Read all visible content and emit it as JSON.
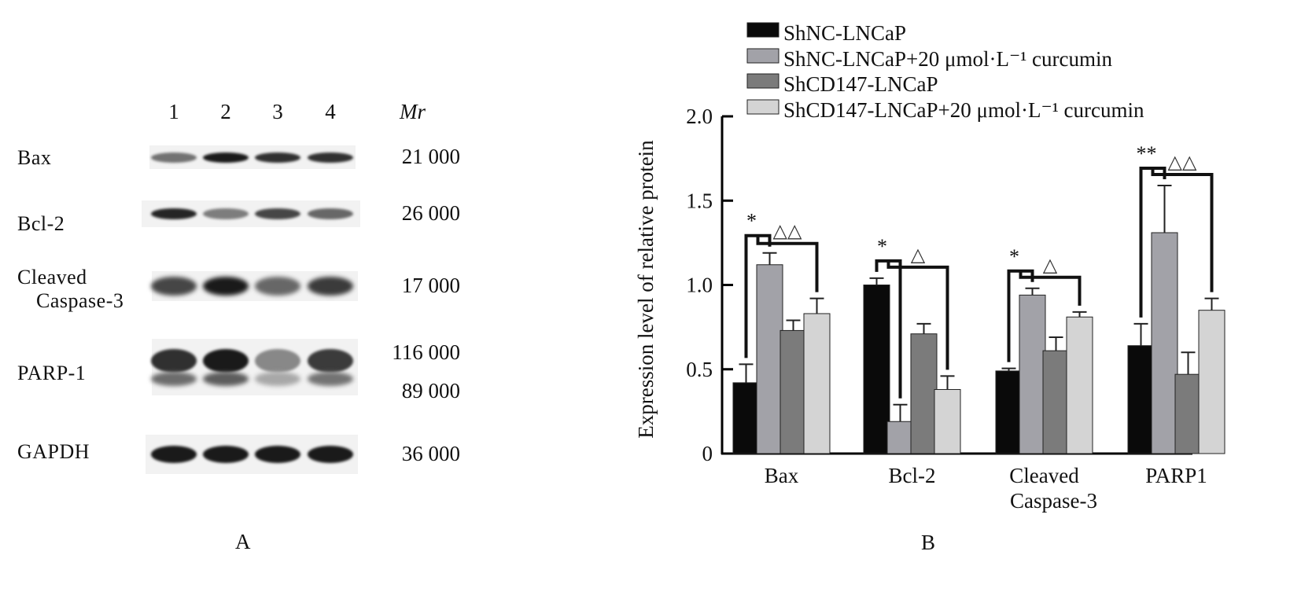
{
  "panel_a": {
    "label": "A",
    "lane_labels": [
      "1",
      "2",
      "3",
      "4"
    ],
    "mr_header": "Mr",
    "rows": [
      {
        "name_lines": [
          "Bax"
        ],
        "mw": [
          "21 000"
        ],
        "intensity": [
          0.55,
          0.95,
          0.85,
          0.85
        ]
      },
      {
        "name_lines": [
          "Bcl-2"
        ],
        "mw": [
          "26 000"
        ],
        "intensity": [
          0.9,
          0.5,
          0.75,
          0.6
        ]
      },
      {
        "name_lines": [
          "Cleaved",
          "Caspase-3"
        ],
        "mw": [
          "17 000"
        ],
        "intensity": [
          0.75,
          0.95,
          0.6,
          0.8
        ]
      },
      {
        "name_lines": [
          "PARP-1"
        ],
        "mw": [
          "116 000",
          "89 000"
        ],
        "intensity": [
          0.85,
          0.95,
          0.45,
          0.8
        ]
      },
      {
        "name_lines": [
          "GAPDH"
        ],
        "mw": [
          "36 000"
        ],
        "intensity": [
          0.95,
          0.95,
          0.95,
          0.95
        ]
      }
    ]
  },
  "chart_data": {
    "type": "bar",
    "panel_label": "B",
    "ylabel": "Expression level of relative protein",
    "ylim": [
      0,
      2.0
    ],
    "yticks": [
      "0",
      "0.5",
      "1.0",
      "1.5",
      "2.0"
    ],
    "ytick_values": [
      0,
      0.5,
      1.0,
      1.5,
      2.0
    ],
    "categories": [
      [
        "Bax"
      ],
      [
        "Bcl-2"
      ],
      [
        "Cleaved",
        "Caspase-3"
      ],
      [
        "PARP1"
      ]
    ],
    "series": [
      {
        "name": "ShNC-LNCaP",
        "color": "#0a0a0a",
        "values": [
          0.42,
          1.0,
          0.49,
          0.64
        ],
        "errors": [
          0.11,
          0.04,
          0.015,
          0.13
        ]
      },
      {
        "name": "ShNC-LNCaP+20 μmol·L⁻¹ curcumin",
        "color": "#a2a2a8",
        "values": [
          1.12,
          0.19,
          0.94,
          1.31
        ],
        "errors": [
          0.07,
          0.1,
          0.04,
          0.28
        ]
      },
      {
        "name": "ShCD147-LNCaP",
        "color": "#7b7b7b",
        "values": [
          0.73,
          0.71,
          0.61,
          0.47
        ],
        "errors": [
          0.06,
          0.06,
          0.08,
          0.13
        ]
      },
      {
        "name": "ShCD147-LNCaP+20 μmol·L⁻¹ curcumin",
        "color": "#d4d4d4",
        "values": [
          0.83,
          0.38,
          0.81,
          0.85
        ],
        "errors": [
          0.09,
          0.08,
          0.03,
          0.07
        ]
      }
    ],
    "legend_position": "top",
    "annotations": [
      {
        "category": 0,
        "left": "*",
        "right": "△△"
      },
      {
        "category": 1,
        "left": "*",
        "right": "△"
      },
      {
        "category": 2,
        "left": "*",
        "right": "△"
      },
      {
        "category": 3,
        "left": "**",
        "right": "△△"
      }
    ]
  }
}
